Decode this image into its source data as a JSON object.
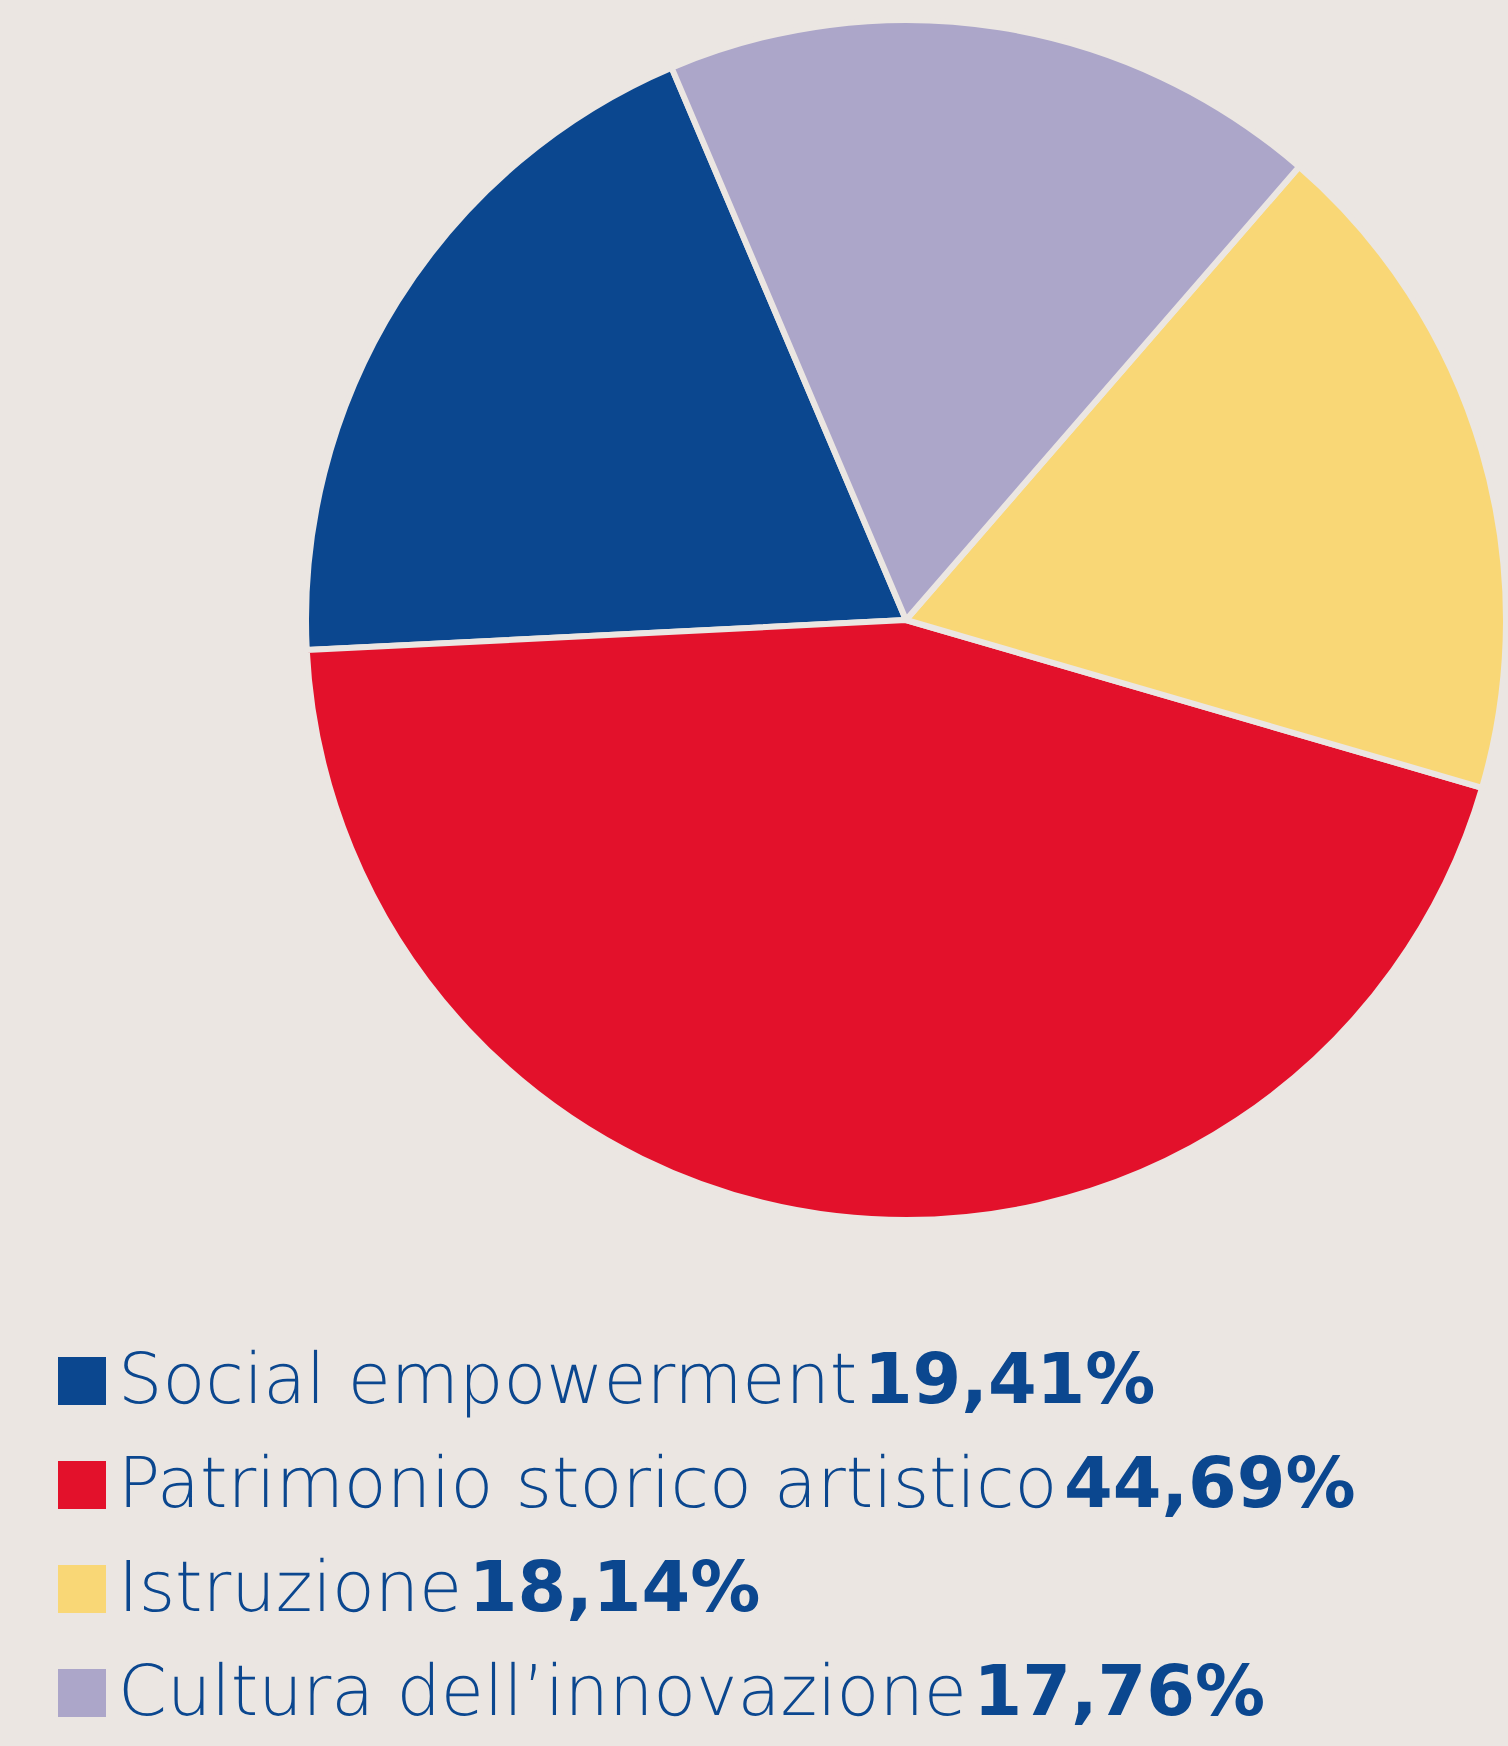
{
  "chart_data": {
    "type": "pie",
    "categories": [
      "Social empowerment",
      "Patrimonio storico artistico",
      "Istruzione",
      "Cultura dell’innovazione"
    ],
    "values": [
      19.41,
      44.69,
      18.14,
      17.76
    ],
    "value_labels": [
      "19,41%",
      "44,69%",
      "18,14%",
      "17,76%"
    ],
    "colors": [
      "#0b478f",
      "#e3112b",
      "#f9d776",
      "#aca6c9"
    ],
    "legend": "bottom"
  }
}
